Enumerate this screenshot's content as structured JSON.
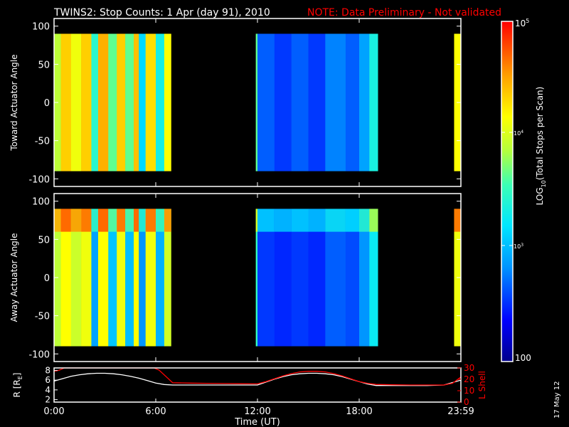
{
  "header": {
    "title": "TWINS2: Stop Counts:  1 Apr (day  91), 2010",
    "note": "NOTE: Data Preliminary - Not validated"
  },
  "side_stamp": "17 May 12",
  "colors": {
    "background": "#000000",
    "foreground": "#ffffff",
    "note": "#ff0000",
    "l_shell": "#ff0000"
  },
  "chart_data": [
    {
      "type": "heatmap",
      "ylabel": "Toward Actuator Angle",
      "ylim": [
        -110,
        110
      ],
      "yticks": [
        100,
        50,
        0,
        -50,
        -100
      ],
      "xlim": [
        0,
        24
      ],
      "data_extent": [
        -90,
        90
      ],
      "value_scale": "log10",
      "coverage_hours": [
        [
          0,
          6.9
        ],
        [
          11.9,
          19.1
        ],
        [
          23.6,
          24
        ]
      ],
      "vertical_profile": "uniform",
      "segments": [
        {
          "from": 0.0,
          "to": 0.4,
          "level": 0.63
        },
        {
          "from": 0.4,
          "to": 1.0,
          "level": 0.78
        },
        {
          "from": 1.0,
          "to": 1.6,
          "level": 0.7
        },
        {
          "from": 1.6,
          "to": 2.2,
          "level": 0.78
        },
        {
          "from": 2.2,
          "to": 2.6,
          "level": 0.48
        },
        {
          "from": 2.6,
          "to": 3.2,
          "level": 0.82
        },
        {
          "from": 3.2,
          "to": 3.7,
          "level": 0.55
        },
        {
          "from": 3.7,
          "to": 4.2,
          "level": 0.78
        },
        {
          "from": 4.2,
          "to": 4.7,
          "level": 0.55
        },
        {
          "from": 4.7,
          "to": 5.0,
          "level": 0.8
        },
        {
          "from": 5.0,
          "to": 5.4,
          "level": 0.38
        },
        {
          "from": 5.4,
          "to": 6.0,
          "level": 0.76
        },
        {
          "from": 6.0,
          "to": 6.5,
          "level": 0.44
        },
        {
          "from": 6.5,
          "to": 6.9,
          "level": 0.72
        },
        {
          "from": 11.9,
          "to": 12.0,
          "level": 0.55
        },
        {
          "from": 12.0,
          "to": 13.0,
          "level": 0.22
        },
        {
          "from": 13.0,
          "to": 14.0,
          "level": 0.18
        },
        {
          "from": 14.0,
          "to": 15.0,
          "level": 0.22
        },
        {
          "from": 15.0,
          "to": 16.0,
          "level": 0.18
        },
        {
          "from": 16.0,
          "to": 17.2,
          "level": 0.26
        },
        {
          "from": 17.2,
          "to": 18.0,
          "level": 0.22
        },
        {
          "from": 18.0,
          "to": 18.6,
          "level": 0.3
        },
        {
          "from": 18.6,
          "to": 19.1,
          "level": 0.45
        },
        {
          "from": 23.6,
          "to": 24.0,
          "level": 0.72
        }
      ]
    },
    {
      "type": "heatmap",
      "ylabel": "Away Actuator Angle",
      "ylim": [
        -110,
        110
      ],
      "yticks": [
        100,
        50,
        0,
        -50,
        -100
      ],
      "xlim": [
        0,
        24
      ],
      "data_extent": [
        -90,
        90
      ],
      "value_scale": "log10",
      "coverage_hours": [
        [
          0,
          6.9
        ],
        [
          11.9,
          19.1
        ],
        [
          23.6,
          24
        ]
      ],
      "vertical_profile": "enhanced above +60",
      "segments": [
        {
          "from": 0.0,
          "to": 0.4,
          "level": 0.63
        },
        {
          "from": 0.4,
          "to": 1.0,
          "level": 0.72
        },
        {
          "from": 1.0,
          "to": 1.6,
          "level": 0.65
        },
        {
          "from": 1.6,
          "to": 2.2,
          "level": 0.7
        },
        {
          "from": 2.2,
          "to": 2.6,
          "level": 0.3
        },
        {
          "from": 2.6,
          "to": 3.2,
          "level": 0.72
        },
        {
          "from": 3.2,
          "to": 3.7,
          "level": 0.35
        },
        {
          "from": 3.7,
          "to": 4.2,
          "level": 0.7
        },
        {
          "from": 4.2,
          "to": 4.7,
          "level": 0.34
        },
        {
          "from": 4.7,
          "to": 5.0,
          "level": 0.72
        },
        {
          "from": 5.0,
          "to": 5.4,
          "level": 0.28
        },
        {
          "from": 5.4,
          "to": 6.0,
          "level": 0.7
        },
        {
          "from": 6.0,
          "to": 6.5,
          "level": 0.32
        },
        {
          "from": 6.5,
          "to": 6.9,
          "level": 0.66
        },
        {
          "from": 11.9,
          "to": 12.0,
          "level": 0.5
        },
        {
          "from": 12.0,
          "to": 13.0,
          "level": 0.18
        },
        {
          "from": 13.0,
          "to": 14.0,
          "level": 0.16
        },
        {
          "from": 14.0,
          "to": 15.0,
          "level": 0.18
        },
        {
          "from": 15.0,
          "to": 16.0,
          "level": 0.16
        },
        {
          "from": 16.0,
          "to": 17.2,
          "level": 0.22
        },
        {
          "from": 17.2,
          "to": 18.0,
          "level": 0.2
        },
        {
          "from": 18.0,
          "to": 18.6,
          "level": 0.28
        },
        {
          "from": 18.6,
          "to": 19.1,
          "level": 0.42
        },
        {
          "from": 23.6,
          "to": 24.0,
          "level": 0.7
        }
      ]
    },
    {
      "type": "line",
      "xlabel": "Time (UT)",
      "xticklabels": [
        {
          "hour": 0,
          "label": "0:00"
        },
        {
          "hour": 6,
          "label": "6:00"
        },
        {
          "hour": 12,
          "label": "12:00"
        },
        {
          "hour": 18,
          "label": "18:00"
        },
        {
          "hour": 24,
          "label": "23:59"
        }
      ],
      "xlim": [
        0,
        24
      ],
      "left_axis": {
        "label": "R [R",
        "label_sub": "E",
        "label_close": "]",
        "ylim": [
          1.5,
          8.5
        ],
        "ticks": [
          2,
          4,
          6,
          8
        ]
      },
      "right_axis": {
        "label": "L Shell",
        "ylim": [
          0,
          30
        ],
        "ticks": [
          0,
          10,
          20,
          30
        ]
      },
      "series": [
        {
          "axis": "left",
          "color": "#ffffff",
          "x": [
            0,
            0.5,
            1,
            1.5,
            2,
            2.5,
            3,
            3.5,
            4,
            4.5,
            5,
            5.5,
            6,
            6.5,
            7,
            8,
            9,
            10,
            11,
            12,
            12.5,
            13,
            13.5,
            14,
            14.5,
            15,
            15.5,
            16,
            16.5,
            17,
            17.5,
            18,
            18.5,
            19,
            20,
            21,
            22,
            23,
            24
          ],
          "y": [
            5.8,
            6.3,
            6.8,
            7.1,
            7.3,
            7.4,
            7.4,
            7.3,
            7.1,
            6.8,
            6.4,
            5.9,
            5.4,
            5.1,
            5.0,
            5.0,
            5.0,
            5.0,
            5.0,
            5.0,
            5.6,
            6.2,
            6.7,
            7.1,
            7.3,
            7.4,
            7.4,
            7.3,
            7.1,
            6.7,
            6.2,
            5.7,
            5.2,
            4.9,
            4.9,
            4.9,
            4.9,
            5.0,
            6.0
          ]
        },
        {
          "axis": "right",
          "color": "#ff0000",
          "x": [
            0,
            0.3,
            0.6,
            1,
            5.9,
            6.2,
            7,
            8,
            9,
            10,
            11,
            12,
            12.5,
            13,
            13.5,
            14,
            14.5,
            15,
            15.5,
            16,
            16.5,
            17,
            17.5,
            18,
            18.5,
            19,
            20,
            21,
            22,
            23,
            23.5,
            24
          ],
          "y": [
            27,
            28,
            30,
            31,
            31,
            28,
            17,
            16.7,
            16.5,
            16.3,
            16.1,
            16,
            18,
            20.5,
            23,
            25,
            26.5,
            27,
            27,
            26.5,
            25,
            23,
            20.5,
            18,
            16.5,
            15.5,
            15.2,
            15,
            15,
            15,
            16.5,
            22
          ]
        }
      ]
    },
    {
      "type": "heatmap",
      "role": "colorbar",
      "ylabel": "LOG",
      "ylabel_sub": "10",
      "ylabel_rest": "(Total Stops per Scan)",
      "log_range": [
        2,
        5
      ],
      "labels": {
        "100": "100",
        "1e3_base": "10",
        "1e3_exp": "3",
        "1e4_base": "10",
        "1e4_exp": "4",
        "1e5_base": "10",
        "1e5_exp": "5"
      }
    }
  ]
}
